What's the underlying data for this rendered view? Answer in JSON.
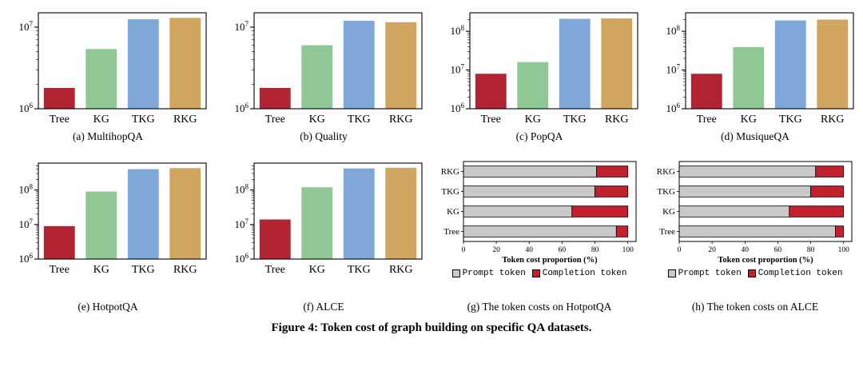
{
  "figure": {
    "caption": "Figure 4: Token cost of graph building on specific QA datasets."
  },
  "colors": {
    "tree": "#b22432",
    "kg": "#8fc795",
    "tkg": "#7fa8d9",
    "rkg": "#d0a55f",
    "prompt": "#c9c9c9",
    "completion": "#c2202f",
    "axis": "#000000"
  },
  "chart_data": [
    {
      "id": "a",
      "type": "bar",
      "title": "(a) MultihopQA",
      "categories": [
        "Tree",
        "KG",
        "TKG",
        "RKG"
      ],
      "values": [
        1800000,
        5400000,
        12500000,
        13000000
      ],
      "ylog": true,
      "ylim": [
        1000000,
        15000000
      ],
      "yticks": [
        1000000,
        10000000
      ],
      "xlabel": "",
      "ylabel": "",
      "grid": false
    },
    {
      "id": "b",
      "type": "bar",
      "title": "(b) Quality",
      "categories": [
        "Tree",
        "KG",
        "TKG",
        "RKG"
      ],
      "values": [
        1800000,
        6000000,
        12000000,
        11500000
      ],
      "ylog": true,
      "ylim": [
        1000000,
        15000000
      ],
      "yticks": [
        1000000,
        10000000
      ],
      "xlabel": "",
      "ylabel": "",
      "grid": false
    },
    {
      "id": "c",
      "type": "bar",
      "title": "(c) PopQA",
      "categories": [
        "Tree",
        "KG",
        "TKG",
        "RKG"
      ],
      "values": [
        8000000,
        16000000,
        210000000,
        215000000
      ],
      "ylog": true,
      "ylim": [
        1000000,
        300000000
      ],
      "yticks": [
        1000000,
        10000000,
        100000000
      ],
      "xlabel": "",
      "ylabel": "",
      "grid": false
    },
    {
      "id": "d",
      "type": "bar",
      "title": "(d) MusiqueQA",
      "categories": [
        "Tree",
        "KG",
        "TKG",
        "RKG"
      ],
      "values": [
        8000000,
        39000000,
        190000000,
        200000000
      ],
      "ylog": true,
      "ylim": [
        1000000,
        300000000
      ],
      "yticks": [
        1000000,
        10000000,
        100000000
      ],
      "xlabel": "",
      "ylabel": "",
      "grid": false
    },
    {
      "id": "e",
      "type": "bar",
      "title": "(e) HotpotQA",
      "categories": [
        "Tree",
        "KG",
        "TKG",
        "RKG"
      ],
      "values": [
        9000000,
        90000000,
        400000000,
        430000000
      ],
      "ylog": true,
      "ylim": [
        1000000,
        600000000
      ],
      "yticks": [
        1000000,
        10000000,
        100000000
      ],
      "xlabel": "",
      "ylabel": "",
      "grid": false
    },
    {
      "id": "f",
      "type": "bar",
      "title": "(f) ALCE",
      "categories": [
        "Tree",
        "KG",
        "TKG",
        "RKG"
      ],
      "values": [
        14000000,
        120000000,
        420000000,
        440000000
      ],
      "ylog": true,
      "ylim": [
        1000000,
        600000000
      ],
      "yticks": [
        1000000,
        10000000,
        100000000
      ],
      "xlabel": "",
      "ylabel": "",
      "grid": false
    },
    {
      "id": "g",
      "type": "stacked_bar_h",
      "title": "(g) The token costs on HotpotQA",
      "categories": [
        "Tree",
        "KG",
        "TKG",
        "RKG"
      ],
      "series": [
        {
          "name": "Prompt token",
          "values": [
            93,
            66,
            80,
            81
          ]
        },
        {
          "name": "Completion token",
          "values": [
            7,
            34,
            20,
            19
          ]
        }
      ],
      "xlabel": "Token cost proportion (%)",
      "xlim": [
        0,
        105
      ],
      "xticks": [
        0,
        20,
        40,
        60,
        80,
        100
      ],
      "legend_position": "bottom",
      "grid": false
    },
    {
      "id": "h",
      "type": "stacked_bar_h",
      "title": "(h) The token costs on ALCE",
      "categories": [
        "Tree",
        "KG",
        "TKG",
        "RKG"
      ],
      "series": [
        {
          "name": "Prompt token",
          "values": [
            95,
            67,
            80,
            83
          ]
        },
        {
          "name": "Completion token",
          "values": [
            5,
            33,
            20,
            17
          ]
        }
      ],
      "xlabel": "Token cost proportion (%)",
      "xlim": [
        0,
        105
      ],
      "xticks": [
        0,
        20,
        40,
        60,
        80,
        100
      ],
      "legend_position": "bottom",
      "grid": false
    }
  ]
}
